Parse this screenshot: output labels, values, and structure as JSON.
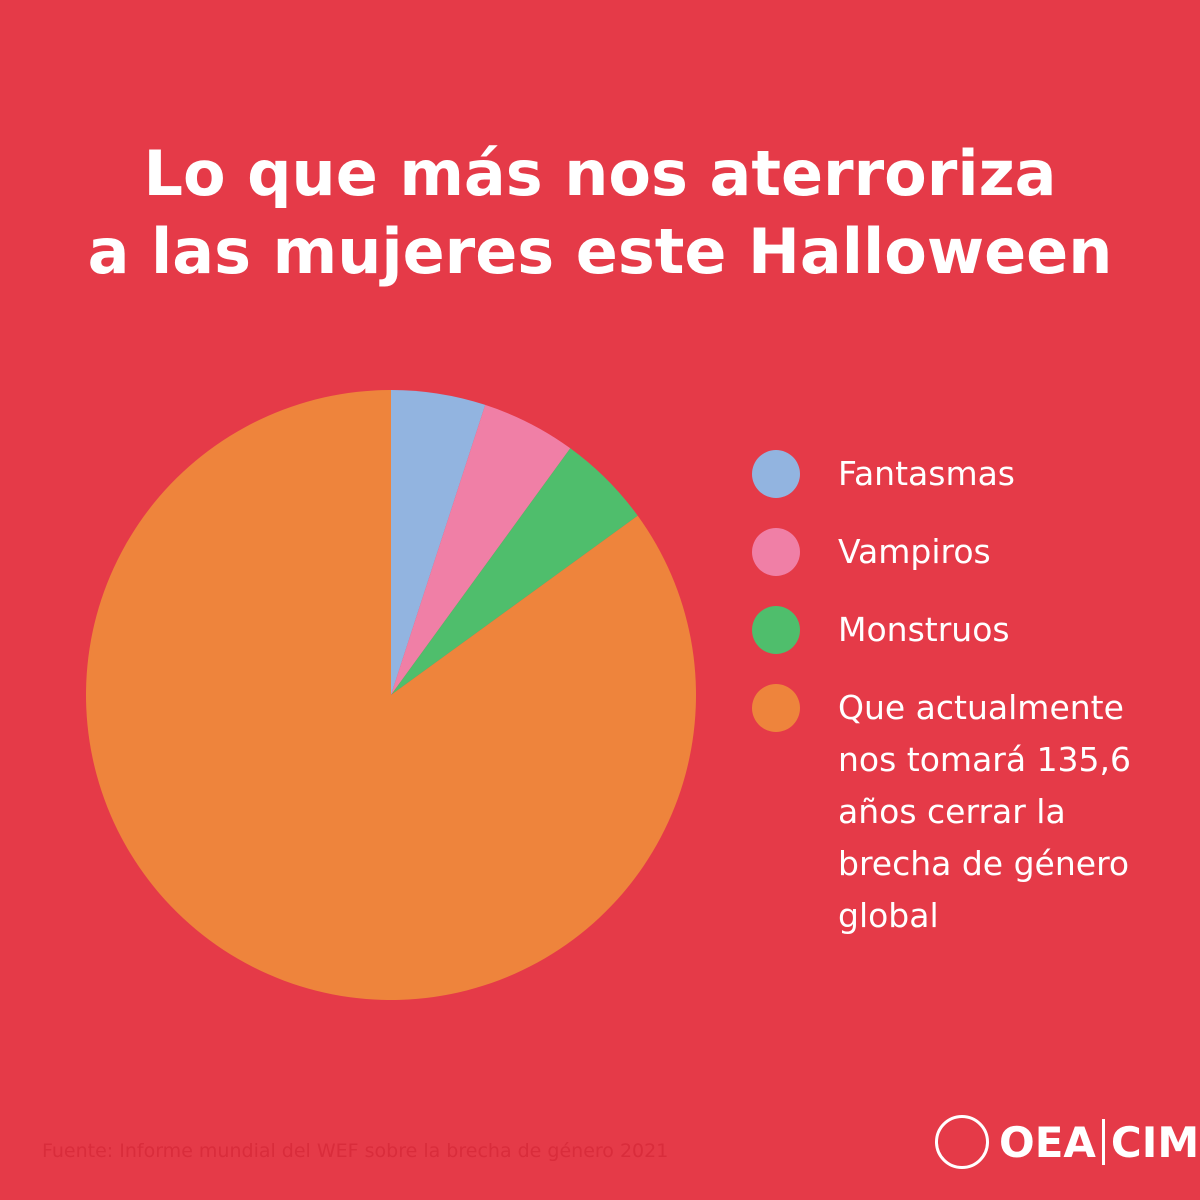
{
  "chart_data": {
    "type": "pie",
    "title": "Lo que más nos aterroriza\na las mujeres este Halloween",
    "categories": [
      "Fantasmas",
      "Vampiros",
      "Monstruos",
      "Que actualmente\nnos tomará 135,6\naños cerrar la\nbrecha de género\nglobal"
    ],
    "values": [
      5,
      5,
      5,
      85
    ],
    "colors": [
      "#92b4e0",
      "#f07fa6",
      "#4fbe6c",
      "#ee843c"
    ],
    "source": "Fuente: Informe mundial del WEF sobre la brecha de género 2021",
    "logo": [
      "OEA",
      "CIM"
    ]
  }
}
